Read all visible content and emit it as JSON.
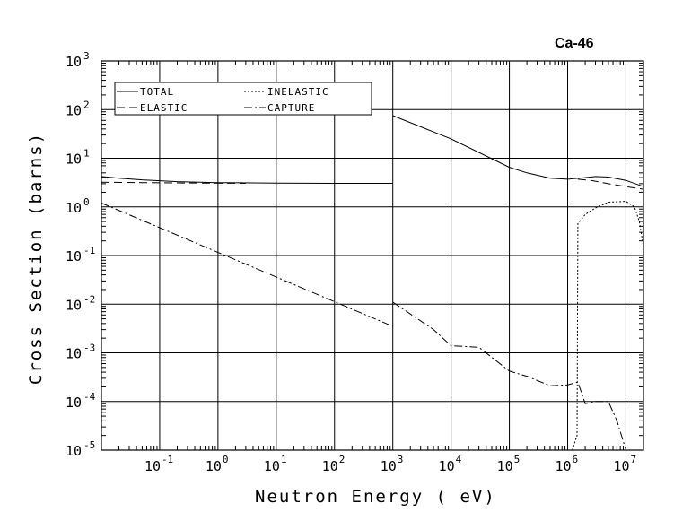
{
  "chart_data": {
    "type": "line",
    "title": "Ca-46",
    "xlabel": "Neutron Energy ( eV)",
    "ylabel": "Cross Section (barns)",
    "xscale": "log",
    "yscale": "log",
    "xlim": [
      0.01,
      20000000
    ],
    "ylim": [
      1e-05,
      1000
    ],
    "x_ticks": [
      {
        "base": "10",
        "exp": "-1",
        "value": 0.1
      },
      {
        "base": "10",
        "exp": "0",
        "value": 1
      },
      {
        "base": "10",
        "exp": "1",
        "value": 10
      },
      {
        "base": "10",
        "exp": "2",
        "value": 100
      },
      {
        "base": "10",
        "exp": "3",
        "value": 1000
      },
      {
        "base": "10",
        "exp": "4",
        "value": 10000
      },
      {
        "base": "10",
        "exp": "5",
        "value": 100000
      },
      {
        "base": "10",
        "exp": "6",
        "value": 1000000
      },
      {
        "base": "10",
        "exp": "7",
        "value": 10000000
      }
    ],
    "y_ticks": [
      {
        "base": "10",
        "exp": "3",
        "value": 1000
      },
      {
        "base": "10",
        "exp": "2",
        "value": 100
      },
      {
        "base": "10",
        "exp": "1",
        "value": 10
      },
      {
        "base": "10",
        "exp": "0",
        "value": 1
      },
      {
        "base": "10",
        "exp": "-1",
        "value": 0.1
      },
      {
        "base": "10",
        "exp": "-2",
        "value": 0.01
      },
      {
        "base": "10",
        "exp": "-3",
        "value": 0.001
      },
      {
        "base": "10",
        "exp": "-4",
        "value": 0.0001
      },
      {
        "base": "10",
        "exp": "-5",
        "value": 1e-05
      }
    ],
    "grid": true,
    "legend_position": "top-left",
    "series": [
      {
        "name": "TOTAL",
        "style": "solid",
        "segments": [
          [
            [
              0.01,
              4.2
            ],
            [
              0.02,
              3.9
            ],
            [
              0.05,
              3.6
            ],
            [
              0.2,
              3.3
            ],
            [
              1,
              3.15
            ],
            [
              10,
              3.08
            ],
            [
              100,
              3.05
            ],
            [
              1000,
              3.05
            ]
          ],
          [
            [
              1000,
              75
            ],
            [
              10000,
              25
            ],
            [
              100000,
              6.5
            ],
            [
              200000,
              5
            ],
            [
              500000,
              3.9
            ],
            [
              1000000,
              3.7
            ],
            [
              2000000,
              4.0
            ],
            [
              3000000,
              4.2
            ],
            [
              5000000,
              4.1
            ],
            [
              10000000,
              3.5
            ],
            [
              20000000,
              2.6
            ]
          ]
        ]
      },
      {
        "name": "ELASTIC",
        "style": "dashed",
        "segments": [
          [
            [
              0.01,
              3.2
            ],
            [
              0.05,
              3.15
            ],
            [
              0.3,
              3.1
            ],
            [
              3,
              3.05
            ]
          ],
          [
            [
              1500000,
              3.7
            ],
            [
              2500000,
              3.5
            ],
            [
              5000000,
              3.0
            ],
            [
              10000000,
              2.6
            ],
            [
              20000000,
              2.3
            ]
          ]
        ]
      },
      {
        "name": "INELASTIC",
        "style": "dotted",
        "segments": [
          [
            [
              1200000,
              1e-05
            ],
            [
              1450000,
              2e-05
            ],
            [
              1500000,
              0.45
            ],
            [
              2000000,
              0.7
            ],
            [
              3000000,
              0.95
            ],
            [
              5000000,
              1.25
            ],
            [
              10000000,
              1.3
            ],
            [
              14000000,
              1.0
            ],
            [
              17000000,
              0.5
            ],
            [
              20000000,
              0.15
            ]
          ]
        ]
      },
      {
        "name": "CAPTURE",
        "style": "dash-dot",
        "segments": [
          [
            [
              0.01,
              1.2
            ],
            [
              1000,
              0.0035
            ]
          ],
          [
            [
              1000,
              0.011
            ],
            [
              5000,
              0.003
            ],
            [
              10000,
              0.0014
            ],
            [
              30000,
              0.0013
            ],
            [
              100000,
              0.00042
            ],
            [
              200000,
              0.00033
            ],
            [
              500000,
              0.00021
            ],
            [
              1000000,
              0.00022
            ],
            [
              1500000,
              0.00025
            ],
            [
              2000000,
              9e-05
            ],
            [
              3000000,
              0.0001
            ],
            [
              5000000,
              0.0001
            ],
            [
              7000000,
              4e-05
            ],
            [
              10000000,
              1e-05
            ]
          ]
        ]
      }
    ]
  }
}
